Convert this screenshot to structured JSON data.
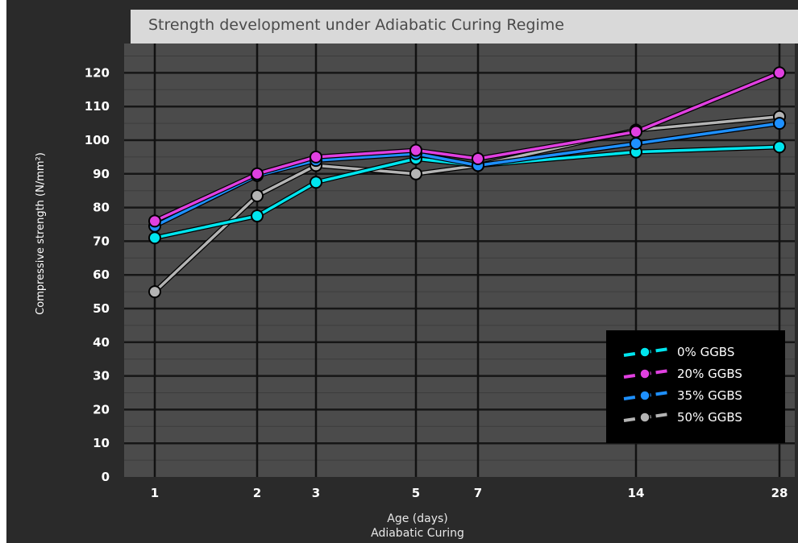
{
  "chart_data": {
    "type": "line",
    "title": "Strength development under Adiabatic Curing Regime",
    "xlabel": "Age (days)",
    "xlabel2": "Adiabatic Curing",
    "ylabel": "Compressive strength (N/mm²)",
    "x": [
      "1",
      "2",
      "3",
      "5",
      "7",
      "14",
      "28"
    ],
    "yticks": [
      0,
      10,
      20,
      30,
      40,
      50,
      60,
      70,
      80,
      90,
      100,
      110,
      120
    ],
    "ylim": [
      0,
      128
    ],
    "grid": true,
    "legend_position": "bottom-right",
    "series": [
      {
        "name": "0% GGBS",
        "color": "#00e5ee",
        "values": [
          71,
          77.5,
          87.5,
          94.5,
          92.5,
          96.5,
          98
        ]
      },
      {
        "name": "20% GGBS",
        "color": "#e040e0",
        "values": [
          76,
          90,
          95,
          97,
          94.5,
          102.5,
          120
        ]
      },
      {
        "name": "35% GGBS",
        "color": "#1e90ff",
        "values": [
          74.5,
          89.5,
          94,
          96,
          92.5,
          99,
          105
        ]
      },
      {
        "name": "50% GGBS",
        "color": "#b4b4b4",
        "values": [
          55,
          83.5,
          92.5,
          90,
          92.5,
          103,
          107
        ]
      }
    ]
  }
}
